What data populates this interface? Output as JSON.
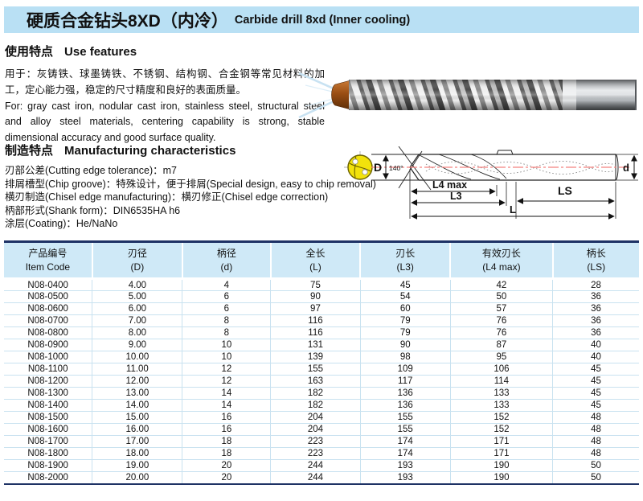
{
  "title": {
    "zh": "硬质合金钻头8XD（内冷）",
    "en": "Carbide drill 8xd (Inner cooling)"
  },
  "use_features": {
    "heading_zh": "使用特点",
    "heading_en": "Use features",
    "body_zh": "用于：灰铸铁、球墨铸铁、不锈钢、结构钢、合金钢等常见材料的加工，定心能力强，稳定的尺寸精度和良好的表面质量。",
    "body_en": "For: gray cast iron, nodular cast iron, stainless steel, structural steel and alloy steel materials, centering capability is strong, stable dimensional accuracy and good surface quality."
  },
  "manufacturing": {
    "heading_zh": "制造特点",
    "heading_en": "Manufacturing characteristics",
    "items": [
      "刃部公差(Cutting edge tolerance)：m7",
      "排屑槽型(Chip groove)：特殊设计，便于排屑(Special design, easy to chip removal)",
      "横刃制造(Chisel edge manufacturing)：横刃修正(Chisel edge correction)",
      "柄部形式(Shank form)：DIN6535HA h6",
      "涂层(Coating)：He/NaNo"
    ]
  },
  "diagram": {
    "labels": {
      "D": "D",
      "angle": "140°",
      "L4": "L4 max",
      "L3": "L3",
      "LS": "LS",
      "L": "L",
      "d": "d"
    }
  },
  "table": {
    "columns": [
      {
        "zh": "产品编号",
        "sub": "Item Code"
      },
      {
        "zh": "刃径",
        "sub": "(D)"
      },
      {
        "zh": "柄径",
        "sub": "(d)"
      },
      {
        "zh": "全长",
        "sub": "(L)"
      },
      {
        "zh": "刃长",
        "sub": "(L3)"
      },
      {
        "zh": "有效刃长",
        "sub": "(L4 max)"
      },
      {
        "zh": "柄长",
        "sub": "(LS)"
      }
    ],
    "rows": [
      [
        "N08-0400",
        "4.00",
        "4",
        "75",
        "45",
        "42",
        "28"
      ],
      [
        "N08-0500",
        "5.00",
        "6",
        "90",
        "54",
        "50",
        "36"
      ],
      [
        "N08-0600",
        "6.00",
        "6",
        "97",
        "60",
        "57",
        "36"
      ],
      [
        "N08-0700",
        "7.00",
        "8",
        "116",
        "79",
        "76",
        "36"
      ],
      [
        "N08-0800",
        "8.00",
        "8",
        "116",
        "79",
        "76",
        "36"
      ],
      [
        "N08-0900",
        "9.00",
        "10",
        "131",
        "90",
        "87",
        "40"
      ],
      [
        "N08-1000",
        "10.00",
        "10",
        "139",
        "98",
        "95",
        "40"
      ],
      [
        "N08-1100",
        "11.00",
        "12",
        "155",
        "109",
        "106",
        "45"
      ],
      [
        "N08-1200",
        "12.00",
        "12",
        "163",
        "117",
        "114",
        "45"
      ],
      [
        "N08-1300",
        "13.00",
        "14",
        "182",
        "136",
        "133",
        "45"
      ],
      [
        "N08-1400",
        "14.00",
        "14",
        "182",
        "136",
        "133",
        "45"
      ],
      [
        "N08-1500",
        "15.00",
        "16",
        "204",
        "155",
        "152",
        "48"
      ],
      [
        "N08-1600",
        "16.00",
        "16",
        "204",
        "155",
        "152",
        "48"
      ],
      [
        "N08-1700",
        "17.00",
        "18",
        "223",
        "174",
        "171",
        "48"
      ],
      [
        "N08-1800",
        "18.00",
        "18",
        "223",
        "174",
        "171",
        "48"
      ],
      [
        "N08-1900",
        "19.00",
        "20",
        "244",
        "193",
        "190",
        "50"
      ],
      [
        "N08-2000",
        "20.00",
        "20",
        "244",
        "193",
        "190",
        "50"
      ]
    ]
  },
  "colors": {
    "title_bar_bg": "#b9e0f4",
    "table_header_bg": "#cfe9f7",
    "table_border": "#1e3265",
    "row_divider": "#c9e2f0",
    "centerline_red": "#f4827f",
    "cross_section_yellow": "#f2e20c",
    "drill_tip_copper": "#a0521d"
  }
}
